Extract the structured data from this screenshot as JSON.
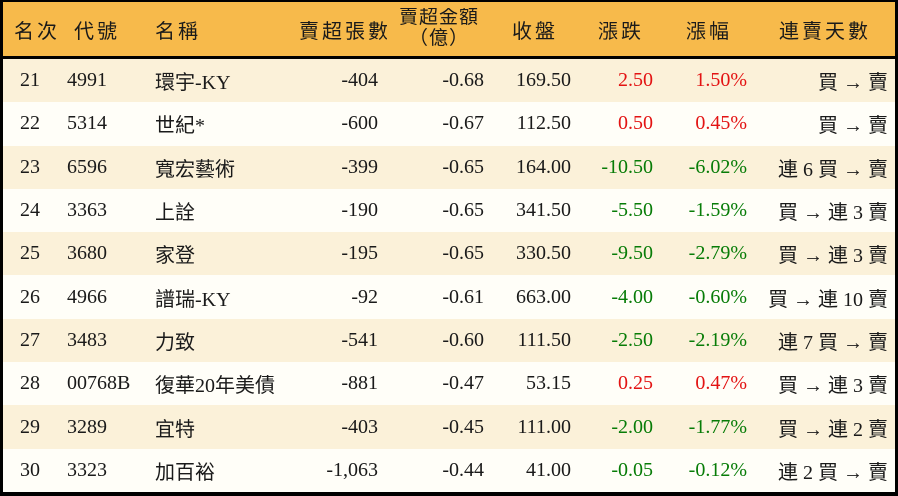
{
  "table": {
    "header": {
      "rank": "名次",
      "code": "代號",
      "name": "名稱",
      "sell_volume": "賣超張數",
      "sell_amount_line1": "賣超金額",
      "sell_amount_line2": "（億）",
      "close": "收盤",
      "change": "漲跌",
      "change_pct": "漲幅",
      "streak": "連賣天數"
    },
    "rows": [
      {
        "rank": "21",
        "code": "4991",
        "name": "環宇-KY",
        "sell_volume": "-404",
        "sell_amount": "-0.68",
        "close": "169.50",
        "change": "2.50",
        "change_pct": "1.50%",
        "streak": "買 → 賣"
      },
      {
        "rank": "22",
        "code": "5314",
        "name": "世紀*",
        "sell_volume": "-600",
        "sell_amount": "-0.67",
        "close": "112.50",
        "change": "0.50",
        "change_pct": "0.45%",
        "streak": "買 → 賣"
      },
      {
        "rank": "23",
        "code": "6596",
        "name": "寬宏藝術",
        "sell_volume": "-399",
        "sell_amount": "-0.65",
        "close": "164.00",
        "change": "-10.50",
        "change_pct": "-6.02%",
        "streak": "連 6 買 → 賣"
      },
      {
        "rank": "24",
        "code": "3363",
        "name": "上詮",
        "sell_volume": "-190",
        "sell_amount": "-0.65",
        "close": "341.50",
        "change": "-5.50",
        "change_pct": "-1.59%",
        "streak": "買 → 連 3 賣"
      },
      {
        "rank": "25",
        "code": "3680",
        "name": "家登",
        "sell_volume": "-195",
        "sell_amount": "-0.65",
        "close": "330.50",
        "change": "-9.50",
        "change_pct": "-2.79%",
        "streak": "買 → 連 3 賣"
      },
      {
        "rank": "26",
        "code": "4966",
        "name": "譜瑞-KY",
        "sell_volume": "-92",
        "sell_amount": "-0.61",
        "close": "663.00",
        "change": "-4.00",
        "change_pct": "-0.60%",
        "streak": "買 → 連 10 賣"
      },
      {
        "rank": "27",
        "code": "3483",
        "name": "力致",
        "sell_volume": "-541",
        "sell_amount": "-0.60",
        "close": "111.50",
        "change": "-2.50",
        "change_pct": "-2.19%",
        "streak": "連 7 買 → 賣"
      },
      {
        "rank": "28",
        "code": "00768B",
        "name": "復華20年美債",
        "sell_volume": "-881",
        "sell_amount": "-0.47",
        "close": "53.15",
        "change": "0.25",
        "change_pct": "0.47%",
        "streak": "買 → 連 3 賣"
      },
      {
        "rank": "29",
        "code": "3289",
        "name": "宜特",
        "sell_volume": "-403",
        "sell_amount": "-0.45",
        "close": "111.00",
        "change": "-2.00",
        "change_pct": "-1.77%",
        "streak": "買 → 連 2 賣"
      },
      {
        "rank": "30",
        "code": "3323",
        "name": "加百裕",
        "sell_volume": "-1,063",
        "sell_amount": "-0.44",
        "close": "41.00",
        "change": "-0.05",
        "change_pct": "-0.12%",
        "streak": "連 2 買 → 賣"
      }
    ]
  },
  "colors": {
    "header_bg": "#f7ba4b",
    "row_odd": "#fbf1d9",
    "row_even": "#fffef8",
    "up": "#e31313",
    "down": "#077c07",
    "border": "#000000"
  }
}
